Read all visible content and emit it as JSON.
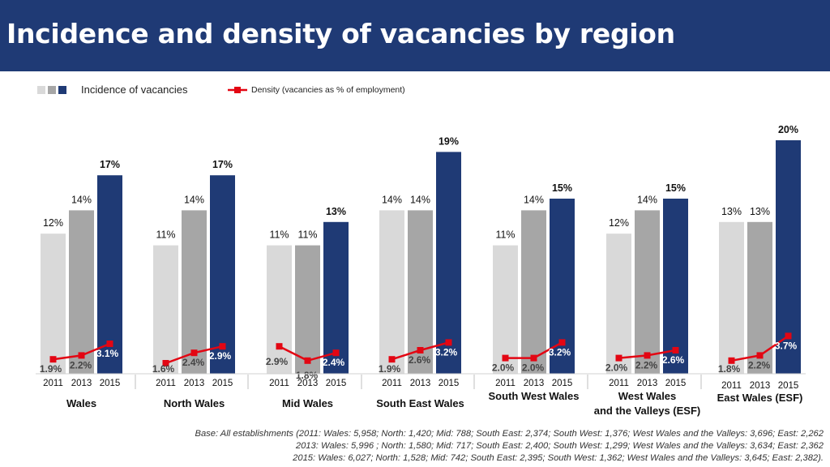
{
  "header": {
    "title": "Incidence and density of vacancies by region"
  },
  "legend": {
    "incidence_label": "Incidence of  vacancies",
    "density_label": "Density (vacancies as % of employment)"
  },
  "colors": {
    "header_bg": "#1f3a75",
    "bar_2011": "#d9d9d9",
    "bar_2013": "#a6a6a6",
    "bar_2015": "#1f3a75",
    "density_line": "#e30613",
    "density_label_light": "#ffffff",
    "density_label_dark": "#444444"
  },
  "chart_data": {
    "type": "bar",
    "title": "Incidence and density of vacancies by region",
    "years": [
      "2011",
      "2013",
      "2015"
    ],
    "regions": [
      {
        "name": "Wales",
        "incidence": [
          12,
          14,
          17
        ],
        "incidence_labels": [
          "12%",
          "14%",
          "17%"
        ],
        "density": [
          1.9,
          2.2,
          3.1
        ],
        "density_labels": [
          "1.9%",
          "2.2%",
          "3.1%"
        ]
      },
      {
        "name": "North Wales",
        "incidence": [
          11,
          14,
          17
        ],
        "incidence_labels": [
          "11%",
          "14%",
          "17%"
        ],
        "density": [
          1.6,
          2.4,
          2.9
        ],
        "density_labels": [
          "1.6%",
          "2.4%",
          "2.9%"
        ]
      },
      {
        "name": "Mid Wales",
        "incidence": [
          11,
          11,
          13
        ],
        "incidence_labels": [
          "11%",
          "11%",
          "13%"
        ],
        "density": [
          2.9,
          1.8,
          2.4
        ],
        "density_labels": [
          "2.9%",
          "1.8%",
          "2.4%"
        ]
      },
      {
        "name": "South East Wales",
        "incidence": [
          14,
          14,
          19
        ],
        "incidence_labels": [
          "14%",
          "14%",
          "19%"
        ],
        "density": [
          1.9,
          2.6,
          3.2
        ],
        "density_labels": [
          "1.9%",
          "2.6%",
          "3.2%"
        ]
      },
      {
        "name": "South West Wales",
        "incidence": [
          11,
          14,
          15
        ],
        "incidence_labels": [
          "11%",
          "14%",
          "15%"
        ],
        "density": [
          2.0,
          2.0,
          3.2
        ],
        "density_labels": [
          "2.0%",
          "2.0%",
          "3.2%"
        ]
      },
      {
        "name": "West Wales\nand the Valleys (ESF)",
        "incidence": [
          12,
          14,
          15
        ],
        "incidence_labels": [
          "12%",
          "14%",
          "15%"
        ],
        "density": [
          2.0,
          2.2,
          2.6
        ],
        "density_labels": [
          "2.0%",
          "2.2%",
          "2.6%"
        ]
      },
      {
        "name": "East Wales (ESF)",
        "incidence": [
          13,
          13,
          20
        ],
        "incidence_labels": [
          "13%",
          "13%",
          "20%"
        ],
        "density": [
          1.8,
          2.2,
          3.7
        ],
        "density_labels": [
          "1.8%",
          "2.2%",
          "3.7%"
        ]
      }
    ]
  },
  "footnote": {
    "line1": "Base: All establishments (2011: Wales: 5,958; North: 1,420; Mid: 788; South East: 2,374; South West: 1,376; West Wales and the Valleys: 3,696; East: 2,262",
    "line2": "2013: Wales: 5,996 ; North: 1,580; Mid: 717; South East: 2,400; South West: 1,299; West Wales and the Valleys: 3,634; East: 2,362",
    "line3": "2015: Wales: 6,027; North: 1,528; Mid: 742; South East: 2,395; South West: 1,362; West Wales and the Valleys: 3,645; East: 2,382)."
  }
}
